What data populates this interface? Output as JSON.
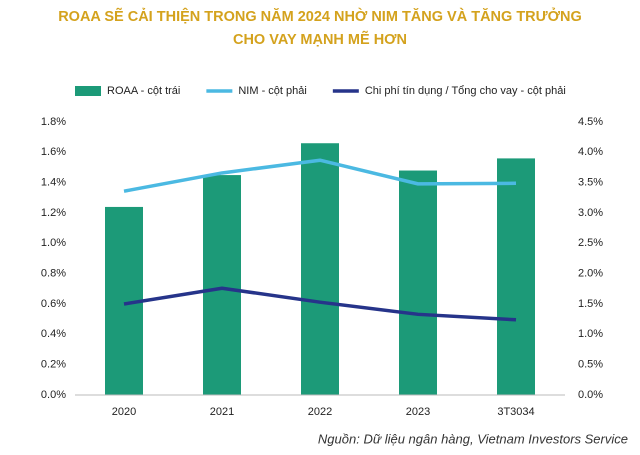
{
  "chart_data": {
    "type": "bar",
    "title": "ROAA SẼ CẢI THIỆN TRONG NĂM 2024 NHỜ NIM TĂNG VÀ TĂNG TRƯỞNG\nCHO VAY MẠNH MẼ HƠN",
    "categories": [
      "2020",
      "2021",
      "2022",
      "2023",
      "3T3034"
    ],
    "series": [
      {
        "name": "ROAA - cột trái",
        "type": "bar",
        "color": "#1c9a78",
        "values": [
          1.24,
          1.45,
          1.66,
          1.48,
          1.56
        ]
      },
      {
        "name": "NIM - cột phải",
        "type": "line",
        "axis": "y2",
        "color": "#4bb9e2",
        "values": [
          3.36,
          3.66,
          3.87,
          3.48,
          3.49
        ]
      },
      {
        "name": "Chi phí tín dụng / Tổng cho vay - cột phải",
        "type": "line",
        "axis": "y2",
        "color": "#26348a",
        "values": [
          1.5,
          1.76,
          1.53,
          1.33,
          1.24
        ]
      }
    ],
    "ylim": [
      0,
      1.8
    ],
    "yticks": [
      {
        "value": 0,
        "label": "0.0%"
      },
      {
        "value": 0.2,
        "label": "0.2%"
      },
      {
        "value": 0.4,
        "label": "0.4%"
      },
      {
        "value": 0.6,
        "label": "0.6%"
      },
      {
        "value": 0.8,
        "label": "0.8%"
      },
      {
        "value": 1.0,
        "label": "1.0%"
      },
      {
        "value": 1.2,
        "label": "1.2%"
      },
      {
        "value": 1.4,
        "label": "1.4%"
      },
      {
        "value": 1.6,
        "label": "1.6%"
      },
      {
        "value": 1.8,
        "label": "1.8%"
      }
    ],
    "y2lim": [
      0,
      4.5
    ],
    "y2ticks": [
      {
        "value": 0,
        "label": "0.0%"
      },
      {
        "value": 0.5,
        "label": "0.5%"
      },
      {
        "value": 1.0,
        "label": "1.0%"
      },
      {
        "value": 1.5,
        "label": "1.5%"
      },
      {
        "value": 2.0,
        "label": "2.0%"
      },
      {
        "value": 2.5,
        "label": "2.5%"
      },
      {
        "value": 3.0,
        "label": "3.0%"
      },
      {
        "value": 3.5,
        "label": "3.5%"
      },
      {
        "value": 4.0,
        "label": "4.0%"
      },
      {
        "value": 4.5,
        "label": "4.5%"
      }
    ],
    "source": "Nguồn: Dữ liệu ngân hàng, Vietnam Investors Service"
  }
}
